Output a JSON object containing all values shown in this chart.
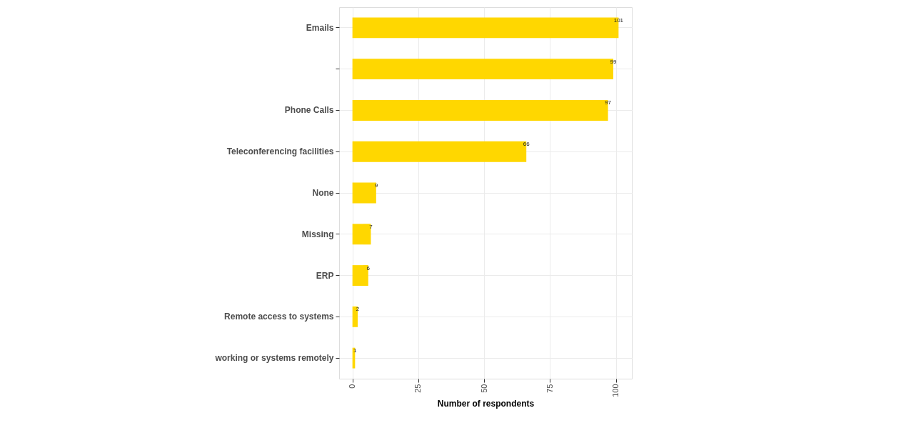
{
  "chart_data": {
    "type": "bar",
    "orientation": "horizontal",
    "xlabel": "Number of respondents",
    "categories": [
      "Emails",
      null,
      "Phone Calls",
      "Teleconferencing facilities",
      "None",
      "Missing",
      "ERP",
      "Remote access to systems",
      "working or systems remotely"
    ],
    "values": [
      101,
      99,
      97,
      66,
      9,
      7,
      6,
      2,
      1
    ],
    "color": "#ffd700",
    "xlim": [
      -5.05,
      106.05
    ],
    "xticks": [
      0,
      25,
      50,
      75,
      100
    ],
    "grid": true,
    "data_labels": true
  }
}
